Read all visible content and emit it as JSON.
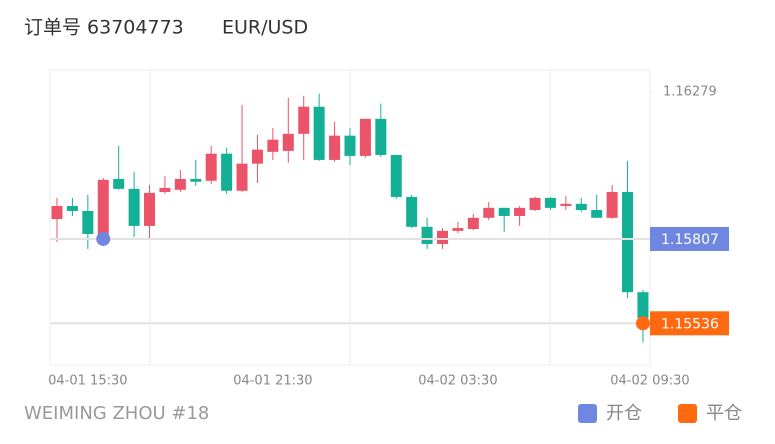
{
  "chart_data": {
    "type": "candlestick",
    "title": "订单号 63704773",
    "symbol": "EUR/USD",
    "categories": [
      null,
      null,
      "04-01 15:30",
      null,
      null,
      null,
      null,
      null,
      null,
      null,
      null,
      null,
      null,
      null,
      "04-01 21:30",
      null,
      null,
      null,
      null,
      null,
      null,
      null,
      null,
      null,
      null,
      null,
      "04-02 03:30",
      null,
      null,
      null,
      null,
      null,
      null,
      null,
      null,
      null,
      null,
      null,
      "04-02 09:30"
    ],
    "open": [
      1.15871,
      1.15913,
      1.15897,
      1.1581,
      1.16,
      1.15968,
      1.15849,
      1.15958,
      1.15965,
      1.16,
      1.15994,
      1.16081,
      1.15962,
      1.16049,
      1.16087,
      1.1609,
      1.16145,
      1.16232,
      1.16061,
      1.16139,
      1.16074,
      1.16193,
      1.16077,
      1.15942,
      1.15846,
      1.15791,
      1.15833,
      1.15839,
      1.15875,
      1.15907,
      1.15881,
      1.159,
      1.15939,
      1.15913,
      1.1592,
      1.159,
      1.15875,
      1.15958,
      1.15636
    ],
    "high": [
      1.15939,
      1.15939,
      1.15949,
      1.16003,
      1.16106,
      1.16023,
      1.15981,
      1.1601,
      1.16029,
      1.16061,
      1.16106,
      1.161,
      1.16238,
      1.16142,
      1.16164,
      1.16261,
      1.16267,
      1.16274,
      1.16184,
      1.16164,
      1.16193,
      1.16242,
      1.16077,
      1.15949,
      1.15875,
      1.15842,
      1.15862,
      1.15888,
      1.15926,
      1.15907,
      1.15913,
      1.15942,
      1.15942,
      1.15945,
      1.15939,
      1.15949,
      1.15981,
      1.16058,
      1.15643
    ],
    "low": [
      1.15797,
      1.15881,
      1.15775,
      1.15784,
      1.15965,
      1.15813,
      1.1581,
      1.15952,
      1.15958,
      1.15978,
      1.15984,
      1.15952,
      1.15958,
      1.15987,
      1.16061,
      1.16052,
      1.16061,
      1.16058,
      1.16055,
      1.16045,
      1.16068,
      1.16071,
      1.15936,
      1.15842,
      1.15775,
      1.15775,
      1.15826,
      1.15836,
      1.15868,
      1.1583,
      1.15849,
      1.15897,
      1.159,
      1.159,
      1.15894,
      1.15875,
      1.15871,
      1.15617,
      1.15475
    ],
    "close": [
      1.15913,
      1.15897,
      1.15823,
      1.15997,
      1.15968,
      1.15849,
      1.15955,
      1.15971,
      1.16,
      1.15991,
      1.16081,
      1.15962,
      1.16049,
      1.16094,
      1.16126,
      1.16145,
      1.16232,
      1.16061,
      1.16139,
      1.16074,
      1.16193,
      1.16077,
      1.15942,
      1.15846,
      1.15791,
      1.15833,
      1.15842,
      1.15875,
      1.15907,
      1.15881,
      1.15907,
      1.15939,
      1.15907,
      1.1592,
      1.159,
      1.15875,
      1.15958,
      1.15636,
      1.15553
    ],
    "up_color": "#eb5468",
    "down_color": "#14b096",
    "ylim": [
      1.15402,
      1.1635
    ],
    "yticks": [
      1.16279
    ],
    "markers": [
      {
        "name": "开仓",
        "color": "#6f87e0",
        "index": 3,
        "value": 1.15807
      },
      {
        "name": "平仓",
        "color": "#ff6a10",
        "index": 38,
        "value": 1.15536
      }
    ],
    "footer": "WEIMING ZHOU #18"
  }
}
